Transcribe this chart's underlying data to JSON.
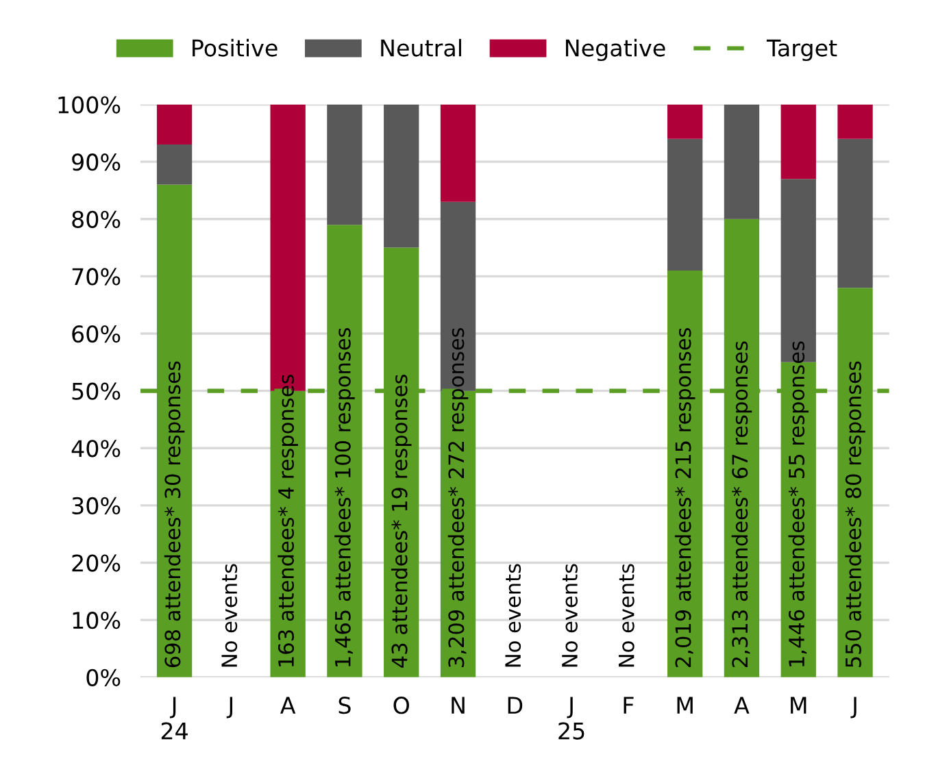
{
  "chart_data": {
    "type": "bar",
    "stacked": true,
    "categories": [
      "J\n24",
      "J",
      "A",
      "S",
      "O",
      "N",
      "D",
      "J\n25",
      "F",
      "M",
      "A",
      "M",
      "J"
    ],
    "series": [
      {
        "name": "Positive",
        "color": "#5a9e24",
        "values": [
          86,
          null,
          50,
          79,
          75,
          50,
          null,
          null,
          null,
          71,
          80,
          55,
          68
        ]
      },
      {
        "name": "Neutral",
        "color": "#595959",
        "values": [
          7,
          null,
          0,
          21,
          25,
          33,
          null,
          null,
          null,
          23,
          20,
          32,
          26
        ]
      },
      {
        "name": "Negative",
        "color": "#b0003a",
        "values": [
          7,
          null,
          50,
          0,
          0,
          17,
          null,
          null,
          null,
          6,
          0,
          13,
          6
        ]
      }
    ],
    "ylim": [
      0,
      100
    ],
    "yticks": [
      {
        "value": 0,
        "label": "0%"
      },
      {
        "value": 10,
        "label": "10%"
      },
      {
        "value": 20,
        "label": "20%"
      },
      {
        "value": 30,
        "label": "30%"
      },
      {
        "value": 40,
        "label": "40%"
      },
      {
        "value": 50,
        "label": "50%"
      },
      {
        "value": 60,
        "label": "60%"
      },
      {
        "value": 70,
        "label": "70%"
      },
      {
        "value": 80,
        "label": "80%"
      },
      {
        "value": 90,
        "label": "90%"
      },
      {
        "value": 100,
        "label": "100%"
      }
    ],
    "grid": "y",
    "legend": "top",
    "ref_lines": [
      {
        "axis": "y",
        "value": 50,
        "label": "Target",
        "color": "#5a9e24",
        "line_style": "dashed"
      }
    ],
    "annotations": [
      "698 attendees* 30 responses",
      "No events",
      "163 attendees* 4 responses",
      "1,465 attendees* 100 responses",
      "43 attendees* 19 responses",
      "3,209 attendees* 272 responses",
      "No events",
      "No events",
      "No events",
      "2,019 attendees* 215 responses",
      "2,313 attendees* 67 responses",
      "1,446 attendees* 55 responses",
      "550 attendees* 80 responses"
    ]
  }
}
